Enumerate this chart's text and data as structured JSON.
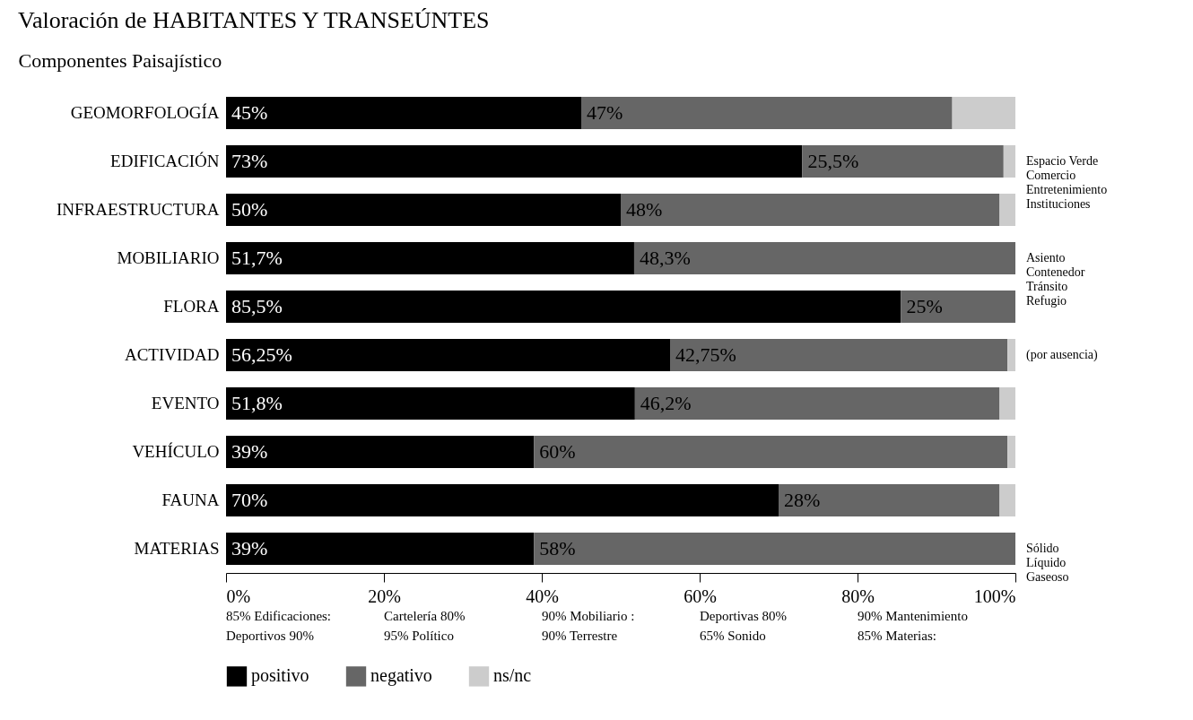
{
  "chart_data": {
    "type": "bar",
    "orientation": "horizontal",
    "stacked": true,
    "title": "Valoración de HABITANTES Y TRANSEÚNTES",
    "ylabel": "Componentes Paisajístico",
    "categories": [
      "GEOMORFOLOGÍA",
      "EDIFICACIÓN",
      "INFRAESTRUCTURA",
      "MOBILIARIO",
      "FLORA",
      "ACTIVIDAD",
      "EVENTO",
      "VEHÍCULO",
      "FAUNA",
      "MATERIAS"
    ],
    "series": [
      {
        "name": "positivo",
        "color": "#000000",
        "values": [
          45,
          73,
          50,
          51.7,
          85.5,
          56.25,
          51.8,
          39,
          70,
          39
        ],
        "value_labels": [
          "45%",
          "73%",
          "50%",
          "51,7%",
          "85,5%",
          "56,25%",
          "51,8%",
          "39%",
          "70%",
          "39%"
        ]
      },
      {
        "name": "negativo",
        "color": "#666666",
        "values": [
          47,
          25.5,
          48,
          48.3,
          14.5,
          42.75,
          46.2,
          60,
          28,
          61
        ],
        "value_labels": [
          "47%",
          "25,5%",
          "48%",
          "48,3%",
          null,
          "42,75%",
          "46,2%",
          "60%",
          "28%",
          null
        ]
      },
      {
        "name": "ns/nc",
        "color": "#cccccc",
        "values": [
          8,
          1.5,
          2,
          0,
          0,
          1,
          2,
          1,
          2,
          0
        ]
      }
    ],
    "xlim": [
      0,
      100
    ],
    "xticks": [
      {
        "value": 0,
        "label": "0%"
      },
      {
        "value": 20,
        "label": "20%"
      },
      {
        "value": 40,
        "label": "40%"
      },
      {
        "value": 60,
        "label": "60%"
      },
      {
        "value": 80,
        "label": "80%"
      },
      {
        "value": 100,
        "label": "100%"
      }
    ],
    "grid": false,
    "legend": "bottom",
    "annotations": [
      {
        "text": "25%",
        "x": 85.5,
        "y": "FLORA"
      },
      {
        "text": "58%",
        "x": 39,
        "y": "MATERIAS"
      },
      {
        "text": "Espacio Verde\nComercio\nEntretenimiento\nInstituciones",
        "x": 100,
        "y": "EDIFICACIÓN"
      },
      {
        "text": "Asiento\nContenedor\nTránsito\nRefugio",
        "x": 100,
        "y": "MOBILIARIO"
      },
      {
        "text": "(por ausencia)",
        "x": 100,
        "y": "ACTIVIDAD"
      },
      {
        "text": "Sólido\nLíquido\nGaseoso",
        "x": 100,
        "y": "MATERIAS"
      },
      "85% Edificaciones:",
      "Cartelería 80%",
      "90% Mobiliario :",
      "Deportivas 80%",
      "90% Mantenimiento",
      "Deportivos 90%",
      "95% Político",
      "90% Terrestre",
      "65% Sonido",
      "85% Materias:"
    ]
  }
}
